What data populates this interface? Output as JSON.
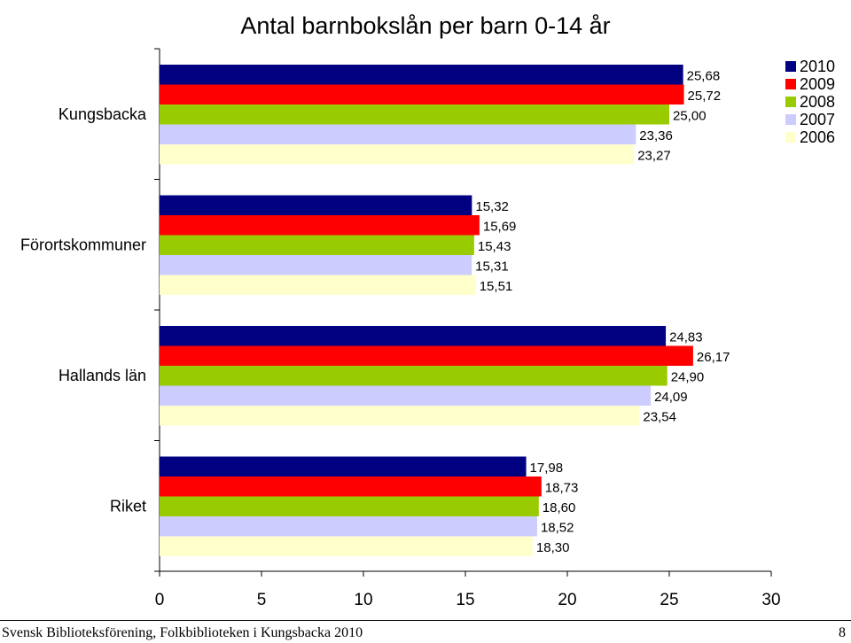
{
  "chart_data": {
    "type": "bar",
    "orientation": "horizontal",
    "title": "Antal barnbokslån per barn 0-14 år",
    "categories": [
      "Kungsbacka",
      "Förortskommuner",
      "Hallands län",
      "Riket"
    ],
    "series": [
      {
        "name": "2010",
        "color": "#000080",
        "values": [
          25.68,
          15.32,
          24.83,
          17.98
        ],
        "labels": [
          "25,68",
          "15,32",
          "24,83",
          "17,98"
        ]
      },
      {
        "name": "2009",
        "color": "#ff0000",
        "values": [
          25.72,
          15.69,
          26.17,
          18.73
        ],
        "labels": [
          "25,72",
          "15,69",
          "26,17",
          "18,73"
        ]
      },
      {
        "name": "2008",
        "color": "#99cc00",
        "values": [
          25.0,
          15.43,
          24.9,
          18.6
        ],
        "labels": [
          "25,00",
          "15,43",
          "24,90",
          "18,60"
        ]
      },
      {
        "name": "2007",
        "color": "#ccccff",
        "values": [
          23.36,
          15.31,
          24.09,
          18.52
        ],
        "labels": [
          "23,36",
          "15,31",
          "24,09",
          "18,52"
        ]
      },
      {
        "name": "2006",
        "color": "#ffffcc",
        "values": [
          23.27,
          15.51,
          23.54,
          18.3
        ],
        "labels": [
          "23,27",
          "15,51",
          "23,54",
          "18,30"
        ]
      }
    ],
    "xlim": [
      0,
      30
    ],
    "xticks": [
      "0",
      "5",
      "10",
      "15",
      "20",
      "25",
      "30"
    ],
    "grid": false,
    "legend": "top-right"
  },
  "footer": {
    "left": "Svensk Biblioteksförening, Folkbiblioteken i Kungsbacka 2010",
    "page_number": "8"
  }
}
